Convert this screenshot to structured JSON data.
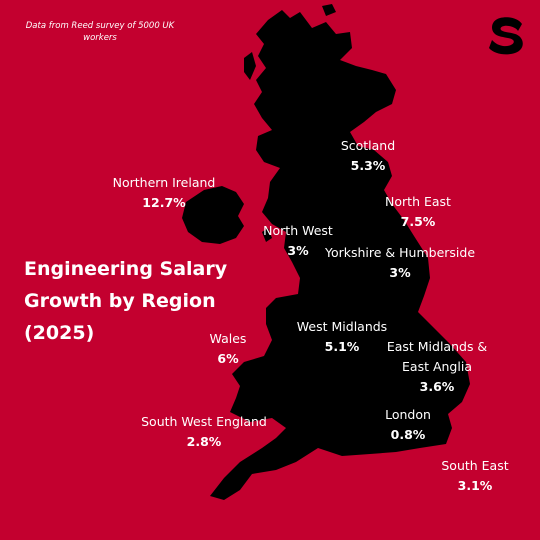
{
  "theme": {
    "background": "#c3002f",
    "land": "#000000",
    "text": "#ffffff"
  },
  "source_note": "Data from Reed survey of 5000 UK workers",
  "logo": "brand-s-logo",
  "title": [
    "Engineering Salary",
    "Growth by Region",
    "(2025)"
  ],
  "regions": [
    {
      "name": "Scotland",
      "value": "5.3%",
      "growth": 5.3
    },
    {
      "name": "Northern Ireland",
      "value": "12.7%",
      "growth": 12.7
    },
    {
      "name": "North East",
      "value": "7.5%",
      "growth": 7.5
    },
    {
      "name": "North West",
      "value": "3%",
      "growth": 3.0
    },
    {
      "name": "Yorkshire & Humberside",
      "value": "3%",
      "growth": 3.0
    },
    {
      "name": "West Midlands",
      "value": "5.1%",
      "growth": 5.1
    },
    {
      "name": "Wales",
      "value": "6%",
      "growth": 6.0
    },
    {
      "name": "East Midlands &\nEast Anglia",
      "value": "3.6%",
      "growth": 3.6
    },
    {
      "name": "London",
      "value": "0.8%",
      "growth": 0.8
    },
    {
      "name": "South West England",
      "value": "2.8%",
      "growth": 2.8
    },
    {
      "name": "South East",
      "value": "3.1%",
      "growth": 3.1
    }
  ]
}
